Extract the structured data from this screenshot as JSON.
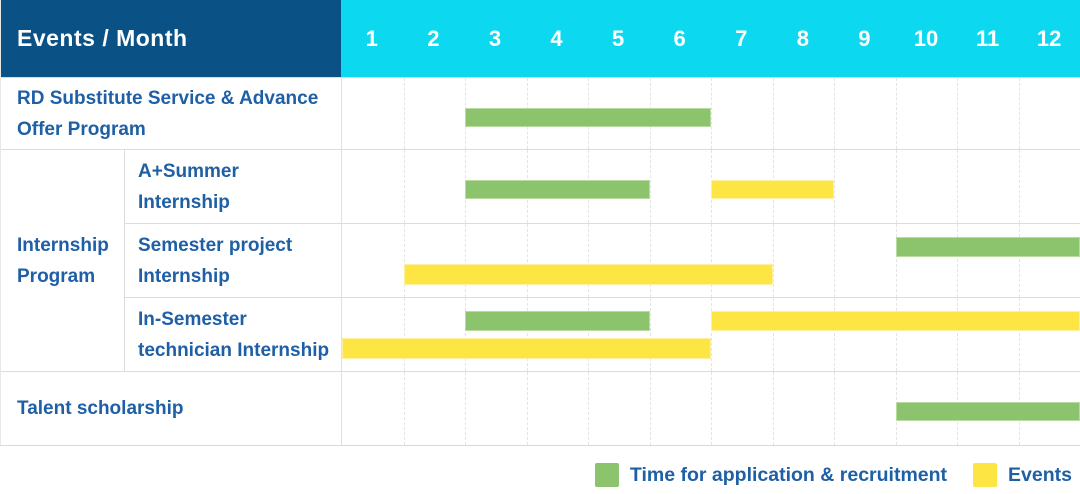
{
  "header": {
    "title": "Events / Month"
  },
  "months": [
    "1",
    "2",
    "3",
    "4",
    "5",
    "6",
    "7",
    "8",
    "9",
    "10",
    "11",
    "12"
  ],
  "colors": {
    "header_bg": "#0a5285",
    "months_bg": "#0cd9f0",
    "label_text": "#1e5fa5",
    "green": "#8bc46d",
    "yellow": "#fde544"
  },
  "chart_data": {
    "type": "gantt",
    "title": "Events / Month",
    "x_unit": "month",
    "x_range": [
      1,
      12
    ],
    "grid": true,
    "rows": [
      {
        "group": "",
        "label": "RD Substitute Service & Advance Offer Program",
        "bars": [
          {
            "type": "application",
            "start": 3,
            "end": 6,
            "lane": "single"
          }
        ]
      },
      {
        "group": "Internship Program",
        "label": "A+Summer Internship",
        "bars": [
          {
            "type": "application",
            "start": 3,
            "end": 5,
            "lane": "single"
          },
          {
            "type": "event",
            "start": 7,
            "end": 8,
            "lane": "single"
          }
        ]
      },
      {
        "group": "Internship Program",
        "label": "Semester project Internship",
        "bars": [
          {
            "type": "application",
            "start": 10,
            "end": 12,
            "lane": "top"
          },
          {
            "type": "event",
            "start": 2,
            "end": 7,
            "lane": "bottom"
          }
        ]
      },
      {
        "group": "Internship Program",
        "label": "In-Semester technician Internship",
        "bars": [
          {
            "type": "application",
            "start": 3,
            "end": 5,
            "lane": "top"
          },
          {
            "type": "event",
            "start": 7,
            "end": 12,
            "lane": "top"
          },
          {
            "type": "event",
            "start": 1,
            "end": 6,
            "lane": "bottom"
          }
        ]
      },
      {
        "group": "",
        "label": "Talent scholarship",
        "bars": [
          {
            "type": "application",
            "start": 10,
            "end": 12,
            "lane": "single"
          }
        ]
      }
    ],
    "legend_position": "bottom-right",
    "legend": [
      {
        "label": "Time for application & recruitment",
        "type": "application"
      },
      {
        "label": "Events",
        "type": "event"
      }
    ]
  },
  "legend": {
    "items": [
      {
        "label": "Time for application & recruitment"
      },
      {
        "label": "Events"
      }
    ]
  }
}
